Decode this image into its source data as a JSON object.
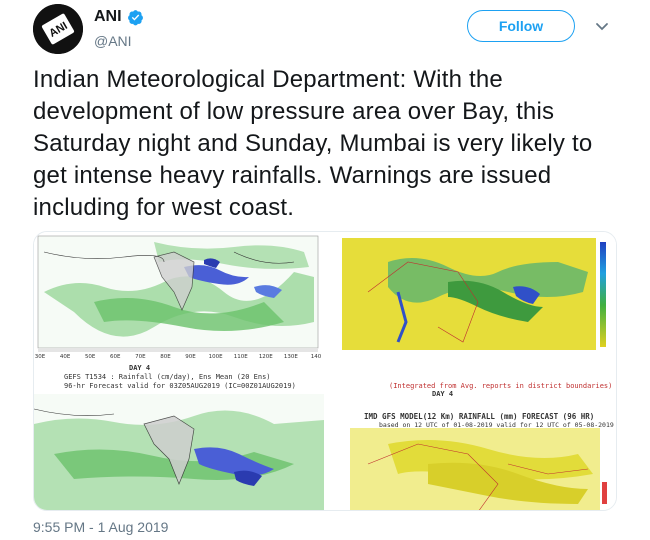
{
  "author": {
    "name": "ANI",
    "handle": "@ANI",
    "avatar_text": "ANI",
    "verified": true
  },
  "follow_button": {
    "label": "Follow"
  },
  "menu": {
    "icon": "chevron-down-icon"
  },
  "tweet": {
    "text": "Indian Meteorological Department: With the development of low pressure area over Bay, this Saturday night and Sunday, Mumbai is very likely to get intense heavy rainfalls. Warnings are issued including for west coast.",
    "timestamp": "9:55 PM - 1 Aug 2019"
  },
  "media": {
    "left_top": {
      "x_ticks": [
        "30E",
        "40E",
        "50E",
        "60E",
        "70E",
        "80E",
        "90E",
        "100E",
        "110E",
        "120E",
        "130E",
        "140"
      ]
    },
    "left_caption": {
      "day": "DAY 4",
      "line1": "GEFS T1534 : Rainfall (cm/day), Ens Mean (20 Ens)",
      "line2": "96-hr Forecast valid for 03Z05AUG2019 (IC=00Z01AUG2019)"
    },
    "right_caption": {
      "day": "DAY 4",
      "note": "(Integrated from Avg. reports in district boundaries)"
    },
    "right_bottom": {
      "title": "IMD GFS MODEL(12 Km) RAINFALL (mm) FORECAST (96 HR)",
      "subtitle": "based on 12 UTC of 01-08-2019 valid for 12 UTC of 05-08-2019"
    }
  },
  "colors": {
    "accent": "#1da1f2",
    "map_green": "#7fcf7f",
    "map_yellow": "#e6dd3a"
  }
}
